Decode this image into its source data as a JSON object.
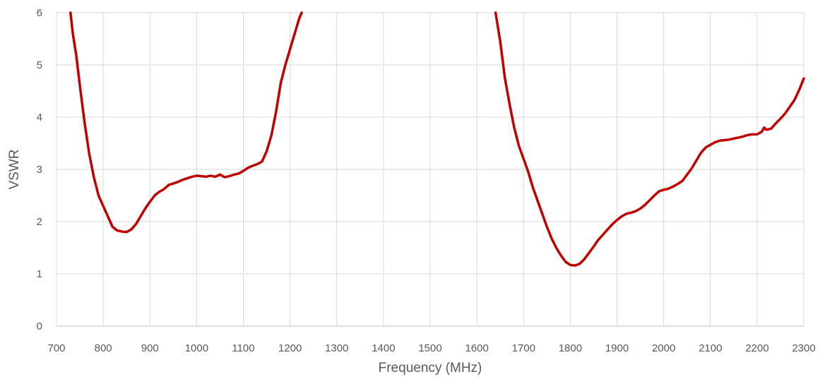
{
  "chart_data": {
    "type": "line",
    "title": "",
    "xlabel": "Frequency (MHz)",
    "ylabel": "VSWR",
    "xlim": [
      700,
      2300
    ],
    "ylim": [
      0,
      6
    ],
    "xticks": [
      700,
      800,
      900,
      1000,
      1100,
      1200,
      1300,
      1400,
      1500,
      1600,
      1700,
      1800,
      1900,
      2000,
      2100,
      2200,
      2300
    ],
    "yticks": [
      0,
      1,
      2,
      3,
      4,
      5,
      6
    ],
    "grid": true,
    "legend": "none",
    "line_color": "#C00000",
    "series": [
      {
        "segments": [
          [
            [
              730,
              6.0
            ],
            [
              735,
              5.6
            ],
            [
              742,
              5.2
            ],
            [
              750,
              4.6
            ],
            [
              760,
              3.9
            ],
            [
              770,
              3.3
            ],
            [
              780,
              2.85
            ],
            [
              790,
              2.5
            ],
            [
              800,
              2.3
            ],
            [
              810,
              2.1
            ],
            [
              820,
              1.9
            ],
            [
              830,
              1.83
            ],
            [
              840,
              1.81
            ],
            [
              850,
              1.8
            ],
            [
              860,
              1.85
            ],
            [
              870,
              1.95
            ],
            [
              880,
              2.1
            ],
            [
              890,
              2.25
            ],
            [
              900,
              2.38
            ],
            [
              910,
              2.5
            ],
            [
              920,
              2.57
            ],
            [
              930,
              2.62
            ],
            [
              940,
              2.7
            ],
            [
              950,
              2.73
            ],
            [
              960,
              2.76
            ],
            [
              970,
              2.8
            ],
            [
              980,
              2.83
            ],
            [
              990,
              2.86
            ],
            [
              1000,
              2.88
            ],
            [
              1010,
              2.87
            ],
            [
              1020,
              2.86
            ],
            [
              1030,
              2.88
            ],
            [
              1040,
              2.86
            ],
            [
              1050,
              2.9
            ],
            [
              1060,
              2.85
            ],
            [
              1070,
              2.87
            ],
            [
              1080,
              2.9
            ],
            [
              1090,
              2.92
            ],
            [
              1100,
              2.97
            ],
            [
              1110,
              3.03
            ],
            [
              1120,
              3.07
            ],
            [
              1130,
              3.1
            ],
            [
              1140,
              3.15
            ],
            [
              1150,
              3.35
            ],
            [
              1160,
              3.65
            ],
            [
              1170,
              4.1
            ],
            [
              1180,
              4.65
            ],
            [
              1190,
              5.0
            ],
            [
              1200,
              5.3
            ],
            [
              1210,
              5.6
            ],
            [
              1220,
              5.9
            ],
            [
              1225,
              6.0
            ]
          ],
          [
            [
              1640,
              6.0
            ],
            [
              1650,
              5.45
            ],
            [
              1660,
              4.75
            ],
            [
              1670,
              4.25
            ],
            [
              1680,
              3.8
            ],
            [
              1690,
              3.45
            ],
            [
              1700,
              3.2
            ],
            [
              1710,
              2.95
            ],
            [
              1720,
              2.65
            ],
            [
              1730,
              2.4
            ],
            [
              1740,
              2.15
            ],
            [
              1750,
              1.9
            ],
            [
              1760,
              1.68
            ],
            [
              1770,
              1.5
            ],
            [
              1780,
              1.35
            ],
            [
              1790,
              1.23
            ],
            [
              1800,
              1.17
            ],
            [
              1810,
              1.16
            ],
            [
              1820,
              1.19
            ],
            [
              1830,
              1.28
            ],
            [
              1840,
              1.4
            ],
            [
              1850,
              1.52
            ],
            [
              1860,
              1.65
            ],
            [
              1870,
              1.75
            ],
            [
              1880,
              1.85
            ],
            [
              1890,
              1.95
            ],
            [
              1900,
              2.03
            ],
            [
              1910,
              2.1
            ],
            [
              1920,
              2.15
            ],
            [
              1930,
              2.17
            ],
            [
              1940,
              2.2
            ],
            [
              1950,
              2.25
            ],
            [
              1960,
              2.32
            ],
            [
              1970,
              2.41
            ],
            [
              1980,
              2.5
            ],
            [
              1990,
              2.58
            ],
            [
              2000,
              2.61
            ],
            [
              2010,
              2.63
            ],
            [
              2020,
              2.67
            ],
            [
              2030,
              2.72
            ],
            [
              2040,
              2.78
            ],
            [
              2050,
              2.9
            ],
            [
              2060,
              3.02
            ],
            [
              2070,
              3.17
            ],
            [
              2080,
              3.32
            ],
            [
              2090,
              3.42
            ],
            [
              2100,
              3.47
            ],
            [
              2110,
              3.52
            ],
            [
              2120,
              3.55
            ],
            [
              2130,
              3.56
            ],
            [
              2140,
              3.57
            ],
            [
              2150,
              3.59
            ],
            [
              2160,
              3.61
            ],
            [
              2170,
              3.63
            ],
            [
              2180,
              3.66
            ],
            [
              2190,
              3.67
            ],
            [
              2200,
              3.67
            ],
            [
              2210,
              3.72
            ],
            [
              2215,
              3.8
            ],
            [
              2220,
              3.76
            ],
            [
              2230,
              3.78
            ],
            [
              2240,
              3.88
            ],
            [
              2250,
              3.97
            ],
            [
              2260,
              4.07
            ],
            [
              2270,
              4.2
            ],
            [
              2280,
              4.33
            ],
            [
              2290,
              4.52
            ],
            [
              2300,
              4.74
            ]
          ]
        ]
      }
    ]
  }
}
